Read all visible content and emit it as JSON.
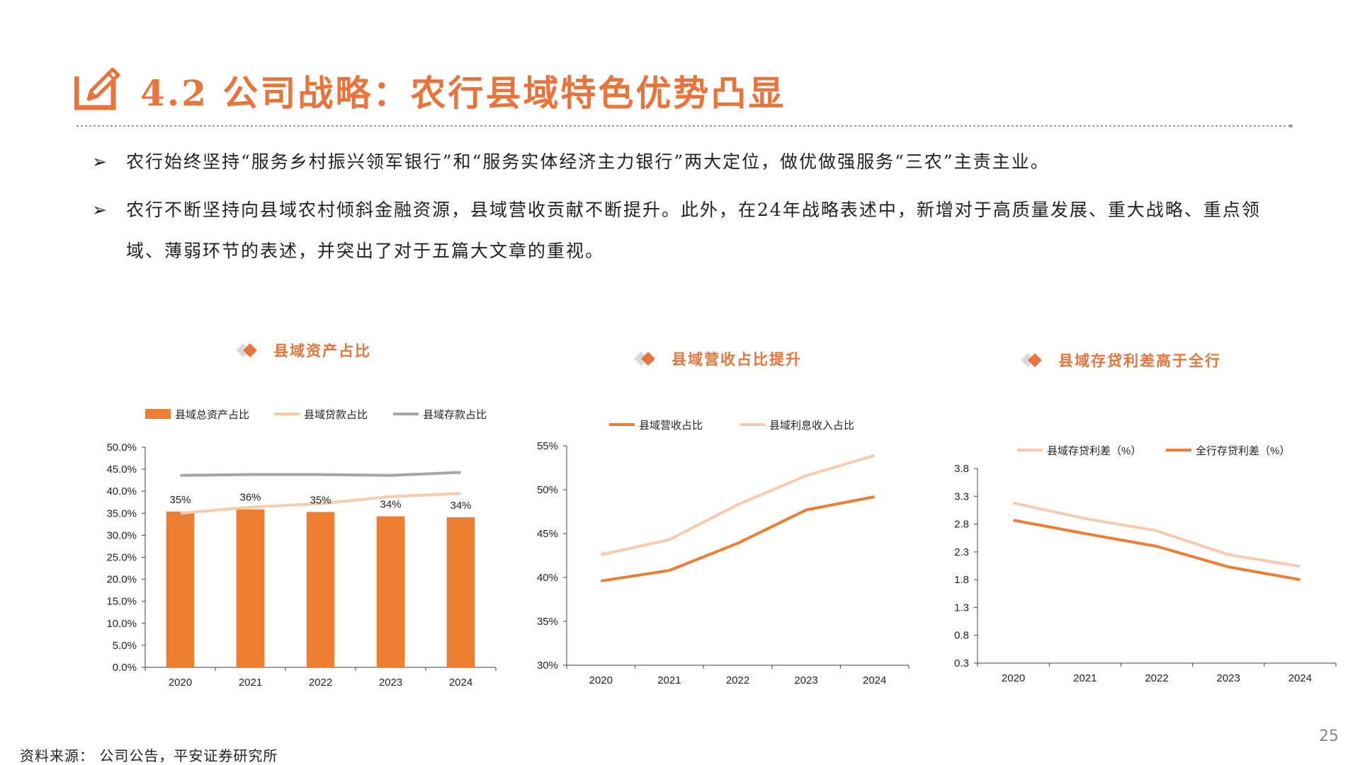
{
  "header": {
    "title": "4.2 公司战略：农行县域特色优势凸显"
  },
  "bullets": [
    {
      "marker": "➢",
      "text": "农行始终坚持“服务乡村振兴领军银行”和“服务实体经济主力银行”两大定位，做优做强服务“三农”主责主业。"
    },
    {
      "marker": "➢",
      "text": "农行不断坚持向县域农村倾斜金融资源，县域营收贡献不断提升。此外，在24年战略表述中，新增对于高质量发展、重大战略、重点领域、薄弱环节的表述，并突出了对于五篇大文章的重视。"
    }
  ],
  "colors": {
    "accent": "#e8743b",
    "bar": "#ed7d31",
    "light": "#f8cbad",
    "gray": "#a6a6a6",
    "axis": "#404040"
  },
  "panels": [
    {
      "title": "县域资产占比"
    },
    {
      "title": "县域营收占比提升"
    },
    {
      "title": "县域存贷利差高于全行"
    }
  ],
  "chart_data": [
    {
      "type": "bar",
      "title": "县域资产占比",
      "categories": [
        "2020",
        "2021",
        "2022",
        "2023",
        "2024"
      ],
      "ylim": [
        0,
        50
      ],
      "yticks": [
        "0.0%",
        "5.0%",
        "10.0%",
        "15.0%",
        "20.0%",
        "25.0%",
        "30.0%",
        "35.0%",
        "40.0%",
        "45.0%",
        "50.0%"
      ],
      "legend_position": "top",
      "series": [
        {
          "name": "县域总资产占比",
          "kind": "bar",
          "values": [
            35.4,
            35.9,
            35.3,
            34.3,
            34.1
          ],
          "labels": [
            "35%",
            "36%",
            "35%",
            "34%",
            "34%"
          ]
        },
        {
          "name": "县域贷款占比",
          "kind": "line",
          "values": [
            35.0,
            36.4,
            37.2,
            38.8,
            39.5
          ]
        },
        {
          "name": "县域存款占比",
          "kind": "line",
          "values": [
            43.6,
            43.8,
            43.8,
            43.6,
            44.3
          ]
        }
      ]
    },
    {
      "type": "line",
      "title": "县域营收占比提升",
      "categories": [
        "2020",
        "2021",
        "2022",
        "2023",
        "2024"
      ],
      "ylim": [
        30,
        55
      ],
      "yticks": [
        "30%",
        "35%",
        "40%",
        "45%",
        "50%",
        "55%"
      ],
      "legend_position": "top",
      "series": [
        {
          "name": "县域营收占比",
          "values": [
            39.6,
            40.8,
            43.9,
            47.7,
            49.2
          ]
        },
        {
          "name": "县域利息收入占比",
          "values": [
            42.6,
            44.3,
            48.3,
            51.6,
            53.9
          ]
        }
      ]
    },
    {
      "type": "line",
      "title": "县域存贷利差高于全行",
      "categories": [
        "2020",
        "2021",
        "2022",
        "2023",
        "2024"
      ],
      "ylim": [
        0.3,
        3.8
      ],
      "yticks": [
        "0.3",
        "0.8",
        "1.3",
        "1.8",
        "2.3",
        "2.8",
        "3.3",
        "3.8"
      ],
      "legend_position": "top",
      "series": [
        {
          "name": "县域存贷利差（%）",
          "values": [
            3.18,
            2.9,
            2.68,
            2.25,
            2.04
          ]
        },
        {
          "name": "全行存贷利差（%）",
          "values": [
            2.87,
            2.63,
            2.4,
            2.03,
            1.8
          ]
        }
      ]
    }
  ],
  "footer": {
    "source": "资料来源：  公司公告，平安证券研究所",
    "page_number": "25"
  }
}
